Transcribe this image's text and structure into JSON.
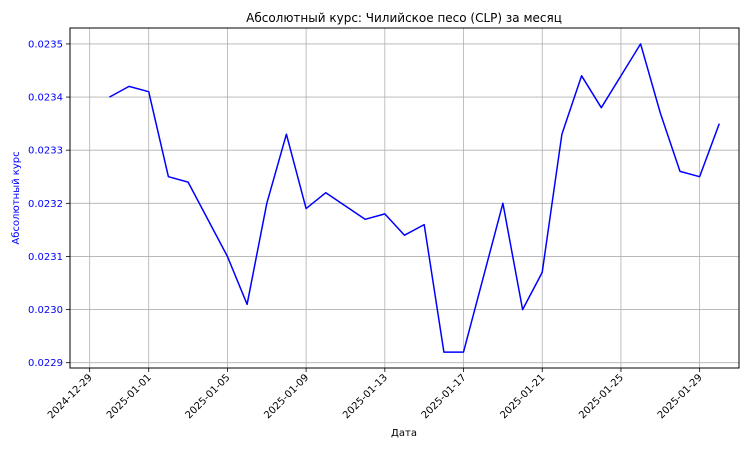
{
  "chart_data": {
    "type": "line",
    "title": "Абсолютный курс: Чилийское песо (CLP) за месяц",
    "xlabel": "Дата",
    "ylabel": "Абсолютный курс",
    "ylim": [
      0.02289,
      0.02353
    ],
    "xlim": [
      "2024-12-28",
      "2025-01-31"
    ],
    "x_tick_labels": [
      "2024-12-29",
      "2025-01-01",
      "2025-01-05",
      "2025-01-09",
      "2025-01-13",
      "2025-01-17",
      "2025-01-21",
      "2025-01-25",
      "2025-01-29"
    ],
    "y_tick_labels": [
      "0.0229",
      "0.0230",
      "0.0231",
      "0.0232",
      "0.0233",
      "0.0234",
      "0.0235"
    ],
    "grid": true,
    "colors": {
      "line": "#0000ff",
      "ylabel": "#0000ff",
      "yticks": "#0000ff",
      "grid": "#b0b0b0"
    },
    "series": [
      {
        "x": [
          "2024-12-30",
          "2024-12-31",
          "2025-01-01",
          "2025-01-02",
          "2025-01-03",
          "2025-01-05",
          "2025-01-06",
          "2025-01-07",
          "2025-01-08",
          "2025-01-09",
          "2025-01-10",
          "2025-01-12",
          "2025-01-13",
          "2025-01-14",
          "2025-01-15",
          "2025-01-16",
          "2025-01-17",
          "2025-01-19",
          "2025-01-20",
          "2025-01-21",
          "2025-01-22",
          "2025-01-23",
          "2025-01-24",
          "2025-01-26",
          "2025-01-27",
          "2025-01-28",
          "2025-01-29",
          "2025-01-30"
        ],
        "values": [
          0.0234,
          0.02342,
          0.02341,
          0.02325,
          0.02324,
          0.0231,
          0.02301,
          0.0232,
          0.02333,
          0.02319,
          0.02322,
          0.02317,
          0.02318,
          0.02314,
          0.02316,
          0.02292,
          0.02292,
          0.0232,
          0.023,
          0.02307,
          0.02333,
          0.02344,
          0.02338,
          0.0235,
          0.02337,
          0.02326,
          0.02325,
          0.02335
        ]
      }
    ]
  }
}
